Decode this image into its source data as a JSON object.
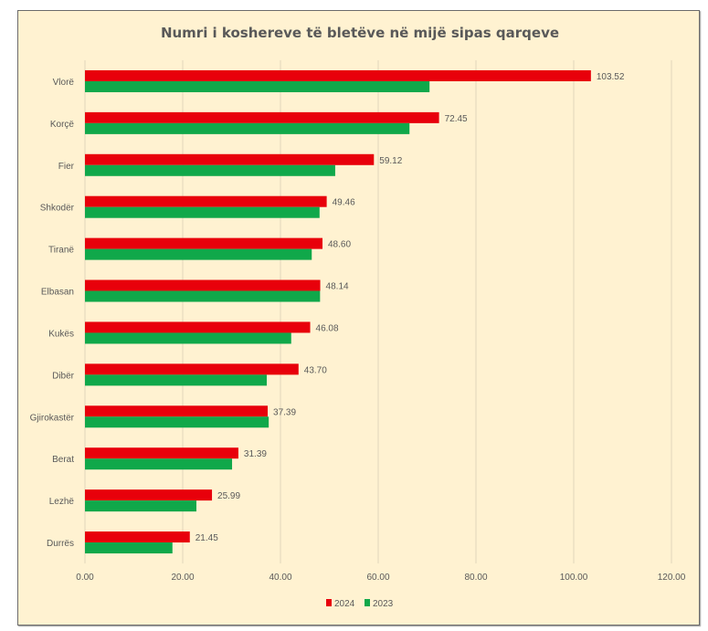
{
  "chart_data": {
    "type": "bar",
    "orientation": "horizontal",
    "title": "Numri i koshereve të bletëve në mijë sipas qarqeve",
    "xlabel": "",
    "ylabel": "",
    "xlim": [
      0,
      120
    ],
    "x_ticks": [
      0,
      20,
      40,
      60,
      80,
      100,
      120
    ],
    "x_tick_labels": [
      "0.00",
      "20.00",
      "40.00",
      "60.00",
      "80.00",
      "100.00",
      "120.00"
    ],
    "grid": true,
    "categories": [
      "Vlorë",
      "Korçë",
      "Fier",
      "Shkodër",
      "Tiranë",
      "Elbasan",
      "Kukës",
      "Dibër",
      "Gjirokastër",
      "Berat",
      "Lezhë",
      "Durrës"
    ],
    "series": [
      {
        "name": "2024",
        "color": "#e8000b",
        "values": [
          103.52,
          72.45,
          59.12,
          49.46,
          48.6,
          48.14,
          46.08,
          43.7,
          37.39,
          31.39,
          25.99,
          21.45
        ],
        "data_labels": [
          "103.52",
          "72.45",
          "59.12",
          "49.46",
          "48.60",
          "48.14",
          "46.08",
          "43.70",
          "37.39",
          "31.39",
          "25.99",
          "21.45"
        ]
      },
      {
        "name": "2023",
        "color": "#10a84a",
        "values": [
          70.5,
          66.4,
          51.2,
          48.0,
          46.4,
          48.1,
          42.2,
          37.2,
          37.6,
          30.1,
          22.8,
          17.9
        ]
      }
    ],
    "legend": {
      "position": "bottom",
      "entries": [
        "2024",
        "2023"
      ]
    }
  }
}
